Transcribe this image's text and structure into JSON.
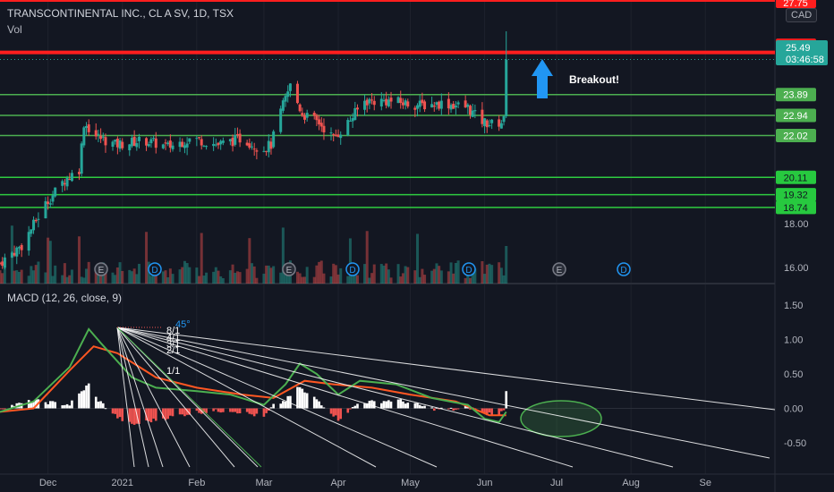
{
  "header": {
    "symbol": "TRANSCONTINENTAL INC., CL A SV, 1D, TSX",
    "vol_label": "Vol",
    "currency": "CAD"
  },
  "macd": {
    "label": "MACD (12, 26, close, 9)",
    "y_ticks": [
      "1.50",
      "1.00",
      "0.50",
      "0.00",
      "-0.50"
    ]
  },
  "annotation": {
    "text": "Breakout!",
    "fan_labels": [
      "8/1",
      "4/1",
      "3/1",
      "2/1",
      "1/1",
      "45°"
    ]
  },
  "price_axis": {
    "top_tag": "27.75",
    "resistance": "25.81",
    "last_price": "25.49",
    "countdown": "03:46:58",
    "levels": [
      "23.89",
      "22.94",
      "22.02",
      "20.11",
      "19.32",
      "18.74"
    ],
    "ticks": [
      "18.00",
      "16.00"
    ]
  },
  "x_axis": [
    "Dec",
    "2021",
    "Feb",
    "Mar",
    "Apr",
    "May",
    "Jun",
    "Jul",
    "Aug",
    "Se"
  ],
  "event_markers": [
    "E",
    "D",
    "E",
    "D",
    "D",
    "E",
    "D"
  ],
  "colors": {
    "background": "#131722",
    "up": "#26a69a",
    "down": "#ef5350",
    "support_line": "#4caf50",
    "resistance_line": "#ff1e1e",
    "macd_line": "#4caf50",
    "signal_line": "#ff5722",
    "histogram_pos": "#ffffff",
    "histogram_neg": "#ef5350",
    "fan_line": "#ffffff",
    "arrow": "#2196f3"
  },
  "chart_data": {
    "type": "candlestick",
    "title": "TRANSCONTINENTAL INC., CL A SV, 1D, TSX",
    "y_range": [
      14.6,
      27.9
    ],
    "timeline": {
      "start": "2020-11-11",
      "end": "2021-09-30",
      "last_bar": "2021-06-10"
    },
    "price_path": [
      [
        "2020-11-11",
        16.2
      ],
      [
        "2020-11-20",
        17.0
      ],
      [
        "2020-11-30",
        18.9
      ],
      [
        "2020-12-08",
        20.0
      ],
      [
        "2020-12-14",
        20.5
      ],
      [
        "2020-12-16",
        22.6
      ],
      [
        "2020-12-21",
        22.0
      ],
      [
        "2020-12-29",
        21.6
      ],
      [
        "2021-01-10",
        21.8
      ],
      [
        "2021-01-20",
        21.5
      ],
      [
        "2021-01-30",
        21.9
      ],
      [
        "2021-02-10",
        21.6
      ],
      [
        "2021-02-20",
        21.9
      ],
      [
        "2021-02-28",
        21.4
      ],
      [
        "2021-03-04",
        21.6
      ],
      [
        "2021-03-08",
        23.1
      ],
      [
        "2021-03-12",
        24.3
      ],
      [
        "2021-03-17",
        23.0
      ],
      [
        "2021-03-24",
        22.6
      ],
      [
        "2021-03-30",
        21.9
      ],
      [
        "2021-04-05",
        22.6
      ],
      [
        "2021-04-12",
        23.6
      ],
      [
        "2021-04-22",
        23.6
      ],
      [
        "2021-05-05",
        23.4
      ],
      [
        "2021-05-15",
        23.5
      ],
      [
        "2021-05-25",
        23.3
      ],
      [
        "2021-05-30",
        22.7
      ],
      [
        "2021-06-05",
        22.5
      ],
      [
        "2021-06-09",
        22.7
      ],
      [
        "2021-06-10",
        25.49
      ]
    ],
    "levels": [
      25.81,
      23.89,
      22.94,
      22.02,
      20.11,
      19.32,
      18.74
    ],
    "macd": {
      "macd_line": [
        [
          "2020-11-11",
          -0.05
        ],
        [
          "2020-11-25",
          0.1
        ],
        [
          "2020-12-10",
          0.6
        ],
        [
          "2020-12-18",
          1.15
        ],
        [
          "2020-12-23",
          0.95
        ],
        [
          "2021-01-05",
          0.45
        ],
        [
          "2021-01-15",
          0.3
        ],
        [
          "2021-02-01",
          0.25
        ],
        [
          "2021-02-15",
          0.2
        ],
        [
          "2021-03-01",
          0.05
        ],
        [
          "2021-03-10",
          0.35
        ],
        [
          "2021-03-16",
          0.65
        ],
        [
          "2021-03-23",
          0.5
        ],
        [
          "2021-04-01",
          0.2
        ],
        [
          "2021-04-10",
          0.4
        ],
        [
          "2021-04-25",
          0.35
        ],
        [
          "2021-05-10",
          0.15
        ],
        [
          "2021-05-25",
          0.05
        ],
        [
          "2021-06-01",
          -0.15
        ],
        [
          "2021-06-07",
          -0.2
        ],
        [
          "2021-06-10",
          -0.05
        ]
      ],
      "signal_line": [
        [
          "2020-11-11",
          -0.05
        ],
        [
          "2020-11-25",
          0.0
        ],
        [
          "2020-12-10",
          0.55
        ],
        [
          "2020-12-20",
          0.9
        ],
        [
          "2020-12-30",
          0.8
        ],
        [
          "2021-01-15",
          0.45
        ],
        [
          "2021-02-01",
          0.3
        ],
        [
          "2021-02-20",
          0.2
        ],
        [
          "2021-03-05",
          0.15
        ],
        [
          "2021-03-18",
          0.4
        ],
        [
          "2021-03-30",
          0.35
        ],
        [
          "2021-04-15",
          0.3
        ],
        [
          "2021-05-01",
          0.2
        ],
        [
          "2021-05-20",
          0.1
        ],
        [
          "2021-06-03",
          -0.1
        ],
        [
          "2021-06-10",
          -0.1
        ]
      ]
    }
  }
}
